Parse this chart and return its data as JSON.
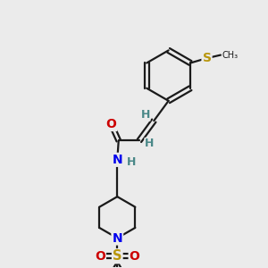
{
  "bg_color": "#ebebeb",
  "bond_color": "#1a1a1a",
  "O_color": "#cc0000",
  "N_color": "#0000ee",
  "S_color": "#b8960c",
  "H_color": "#4a8888",
  "C_color": "#1a1a1a",
  "lw": 1.6,
  "dbo": 0.055,
  "xlim": [
    0,
    10
  ],
  "ylim": [
    0,
    10
  ]
}
